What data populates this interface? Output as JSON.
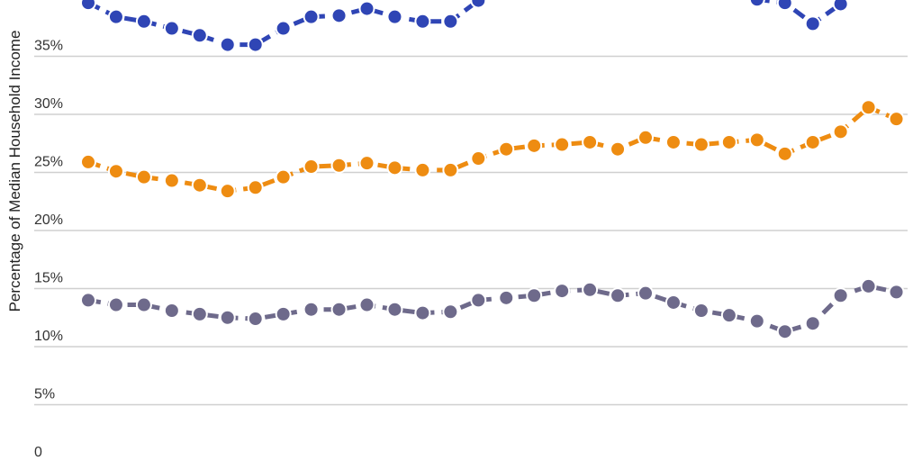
{
  "chart_data": {
    "type": "line",
    "ylabel": "Percentage of Median Household Income",
    "ylim": [
      0,
      40
    ],
    "yticks": [
      0,
      5,
      10,
      15,
      20,
      25,
      30,
      35
    ],
    "ytick_labels": [
      "0",
      "5%",
      "10%",
      "15%",
      "20%",
      "25%",
      "30%",
      "35%"
    ],
    "grid": true,
    "series": [
      {
        "color": "#2f45b5",
        "values": [
          39.6,
          38.4,
          38.0,
          37.4,
          36.8,
          36.0,
          36.0,
          37.4,
          38.4,
          38.5,
          39.1,
          38.4,
          38.0,
          38.0,
          39.8,
          null,
          null,
          null,
          null,
          null,
          null,
          null,
          null,
          null,
          39.9,
          39.6,
          37.8,
          39.5
        ]
      },
      {
        "color": "#ee8c11",
        "values": [
          25.9,
          25.1,
          24.6,
          24.3,
          23.9,
          23.4,
          23.7,
          24.6,
          25.5,
          25.6,
          25.8,
          25.4,
          25.2,
          25.2,
          26.2,
          27.0,
          27.3,
          27.4,
          27.6,
          27.0,
          28.0,
          27.6,
          27.4,
          27.6,
          27.8,
          26.6,
          27.6,
          28.5,
          30.6,
          29.6
        ]
      },
      {
        "color": "#6e6a8b",
        "values": [
          14.0,
          13.6,
          13.6,
          13.1,
          12.8,
          12.5,
          12.4,
          12.8,
          13.2,
          13.2,
          13.6,
          13.2,
          12.9,
          13.0,
          14.0,
          14.2,
          14.4,
          14.8,
          14.9,
          14.4,
          14.6,
          13.8,
          13.1,
          12.7,
          12.2,
          11.3,
          12.0,
          14.4,
          15.2,
          14.7
        ]
      }
    ]
  }
}
